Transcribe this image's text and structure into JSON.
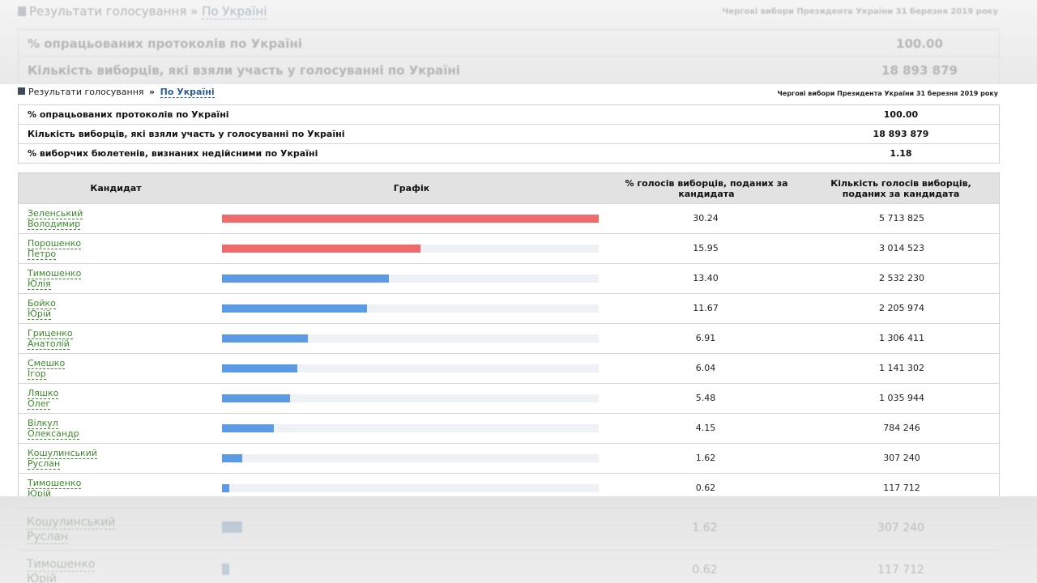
{
  "breadcrumb": {
    "label": "Результати голосування",
    "separator": "»",
    "link": "По Україні"
  },
  "election_title": "Чергові вибори Президента України 31 березня 2019 року",
  "summary": [
    {
      "label": "% опрацьованих протоколів по Україні",
      "value": "100.00"
    },
    {
      "label": "Кількість виборців, які взяли участь у голосуванні по Україні",
      "value": "18 893 879"
    },
    {
      "label": "% виборчих бюлетенів, визнаних недійсними по Україні",
      "value": "1.18"
    }
  ],
  "table": {
    "headers": {
      "candidate": "Кандидат",
      "graph": "Графік",
      "percent": "% голосів виборців, поданих за кандидата",
      "votes": "Кількість голосів виборців, поданих за кандидата"
    },
    "rows": [
      {
        "surname": "Зеленський",
        "first_name": "Володимир",
        "percent": "30.24",
        "votes": "5 713 825",
        "bar_fraction": 1.0,
        "bar_color": "#ef6b6b"
      },
      {
        "surname": "Порошенко",
        "first_name": "Петро",
        "percent": "15.95",
        "votes": "3 014 523",
        "bar_fraction": 0.527,
        "bar_color": "#ef6b6b"
      },
      {
        "surname": "Тимошенко",
        "first_name": "Юлія",
        "percent": "13.40",
        "votes": "2 532 230",
        "bar_fraction": 0.443,
        "bar_color": "#5b9be6"
      },
      {
        "surname": "Бойко",
        "first_name": "Юрій",
        "percent": "11.67",
        "votes": "2 205 974",
        "bar_fraction": 0.386,
        "bar_color": "#5b9be6"
      },
      {
        "surname": "Гриценко",
        "first_name": "Анатолій",
        "percent": "6.91",
        "votes": "1 306 411",
        "bar_fraction": 0.228,
        "bar_color": "#5b9be6"
      },
      {
        "surname": "Смешко",
        "first_name": "Ігор",
        "percent": "6.04",
        "votes": "1 141 302",
        "bar_fraction": 0.2,
        "bar_color": "#5b9be6"
      },
      {
        "surname": "Ляшко",
        "first_name": "Олег",
        "percent": "5.48",
        "votes": "1 035 944",
        "bar_fraction": 0.181,
        "bar_color": "#5b9be6"
      },
      {
        "surname": "Вілкул",
        "first_name": "Олександр",
        "percent": "4.15",
        "votes": "784 246",
        "bar_fraction": 0.137,
        "bar_color": "#5b9be6"
      },
      {
        "surname": "Кошулинський",
        "first_name": "Руслан",
        "percent": "1.62",
        "votes": "307 240",
        "bar_fraction": 0.054,
        "bar_color": "#5b9be6"
      },
      {
        "surname": "Тимошенко",
        "first_name": "Юрій",
        "percent": "0.62",
        "votes": "117 712",
        "bar_fraction": 0.02,
        "bar_color": "#5b9be6"
      }
    ]
  }
}
